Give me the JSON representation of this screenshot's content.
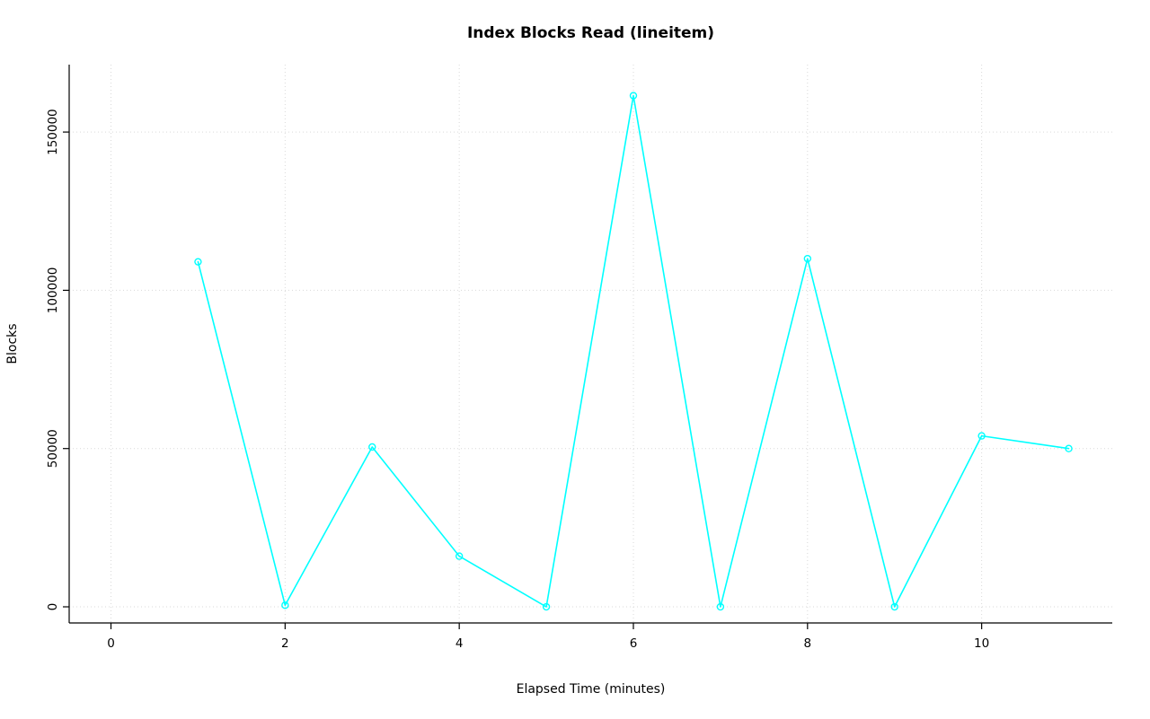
{
  "chart_data": {
    "type": "line",
    "title": "Index Blocks Read (lineitem)",
    "xlabel": "Elapsed Time (minutes)",
    "ylabel": "Blocks",
    "x": [
      1,
      2,
      3,
      4,
      5,
      6,
      7,
      8,
      9,
      10,
      11
    ],
    "values": [
      109000,
      500,
      50500,
      16000,
      0,
      161500,
      0,
      110000,
      0,
      54000,
      50000
    ],
    "xlim": [
      -0.48,
      11.5
    ],
    "ylim": [
      -5100,
      171300
    ],
    "xticks": [
      0,
      2,
      4,
      6,
      8,
      10
    ],
    "yticks": [
      0,
      50000,
      100000,
      150000
    ],
    "grid": true,
    "legend": "none",
    "line_color": "#00FFFF",
    "grid_color": "#D9D9D9",
    "axis_color": "#000000",
    "marker": "open-circle"
  }
}
